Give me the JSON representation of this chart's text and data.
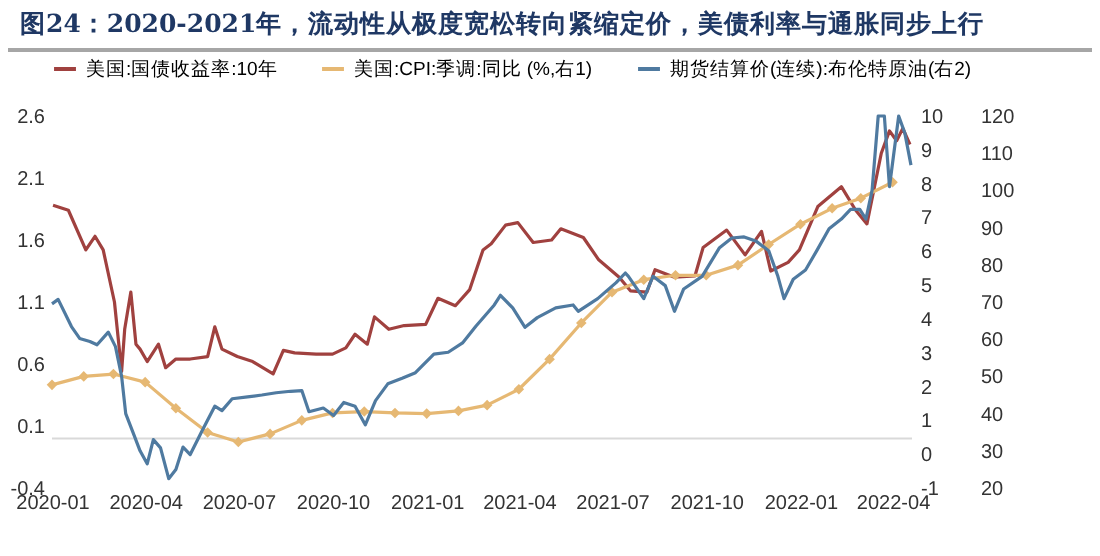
{
  "chart_data": {
    "type": "line",
    "title": "图24：2020-2021年，流动性从极度宽松转向紧缩定价，美债利率与通胀同步上行",
    "xlim": [
      "2020-01-01",
      "2022-04-20"
    ],
    "xticks": [
      "2020-01",
      "2020-04",
      "2020-07",
      "2020-10",
      "2021-01",
      "2021-04",
      "2021-07",
      "2021-10",
      "2022-01",
      "2022-04"
    ],
    "ylim": [
      -0.4,
      2.6
    ],
    "yticks": [
      -0.4,
      0.1,
      0.6,
      1.1,
      1.6,
      2.1,
      2.6
    ],
    "y2lim": [
      -1,
      10
    ],
    "y2ticks": [
      -1,
      0,
      1,
      2,
      3,
      4,
      5,
      6,
      7,
      8,
      9,
      10
    ],
    "y3lim": [
      20,
      120
    ],
    "y3ticks": [
      20,
      30,
      40,
      50,
      60,
      70,
      80,
      90,
      100,
      110,
      120
    ],
    "grid": false,
    "legend": "top",
    "ref_lines": [
      {
        "axis": "y",
        "value": 0,
        "color": "#d9d9d9"
      }
    ],
    "series": [
      {
        "name": "美国:国债收益率:10年",
        "color": "#a0413f",
        "marker": "none",
        "x": [
          "2020-01-02",
          "2020-01-17",
          "2020-02-03",
          "2020-02-12",
          "2020-02-20",
          "2020-03-02",
          "2020-03-09",
          "2020-03-12",
          "2020-03-18",
          "2020-03-23",
          "2020-03-27",
          "2020-04-03",
          "2020-04-14",
          "2020-04-21",
          "2020-05-01",
          "2020-05-15",
          "2020-06-01",
          "2020-06-08",
          "2020-06-15",
          "2020-06-30",
          "2020-07-15",
          "2020-08-04",
          "2020-08-14",
          "2020-08-25",
          "2020-09-15",
          "2020-10-01",
          "2020-10-14",
          "2020-10-23",
          "2020-11-04",
          "2020-11-11",
          "2020-11-25",
          "2020-12-10",
          "2020-12-31",
          "2021-01-12",
          "2021-01-29",
          "2021-02-12",
          "2021-02-25",
          "2021-03-05",
          "2021-03-19",
          "2021-03-31",
          "2021-04-15",
          "2021-05-03",
          "2021-05-12",
          "2021-06-03",
          "2021-06-18",
          "2021-07-08",
          "2021-07-19",
          "2021-08-04",
          "2021-08-12",
          "2021-08-31",
          "2021-09-20",
          "2021-09-28",
          "2021-10-21",
          "2021-11-08",
          "2021-11-24",
          "2021-12-03",
          "2021-12-20",
          "2021-12-31",
          "2022-01-18",
          "2022-02-10",
          "2022-02-24",
          "2022-03-07",
          "2022-03-21",
          "2022-03-29",
          "2022-04-05",
          "2022-04-11",
          "2022-04-18"
        ],
        "values": [
          1.88,
          1.84,
          1.52,
          1.63,
          1.52,
          1.1,
          0.54,
          0.88,
          1.18,
          0.76,
          0.72,
          0.62,
          0.76,
          0.57,
          0.64,
          0.64,
          0.66,
          0.9,
          0.72,
          0.66,
          0.62,
          0.52,
          0.71,
          0.69,
          0.68,
          0.68,
          0.73,
          0.84,
          0.76,
          0.98,
          0.88,
          0.91,
          0.92,
          1.13,
          1.07,
          1.2,
          1.52,
          1.57,
          1.72,
          1.74,
          1.58,
          1.6,
          1.69,
          1.62,
          1.44,
          1.3,
          1.19,
          1.18,
          1.36,
          1.3,
          1.31,
          1.54,
          1.68,
          1.48,
          1.67,
          1.35,
          1.42,
          1.52,
          1.87,
          2.03,
          1.84,
          1.73,
          2.3,
          2.48,
          2.4,
          2.5,
          2.37
        ]
      },
      {
        "name": "美国:CPI:季调:同比 (%,右1)",
        "color": "#e6b873",
        "axis": "y2",
        "marker": "diamond",
        "x": [
          "2020-01-01",
          "2020-02-01",
          "2020-03-01",
          "2020-04-01",
          "2020-05-01",
          "2020-06-01",
          "2020-07-01",
          "2020-08-01",
          "2020-09-01",
          "2020-10-01",
          "2020-11-01",
          "2020-12-01",
          "2021-01-01",
          "2021-02-01",
          "2021-03-01",
          "2021-04-01",
          "2021-05-01",
          "2021-06-01",
          "2021-07-01",
          "2021-08-01",
          "2021-09-01",
          "2021-10-01",
          "2021-11-01",
          "2021-12-01",
          "2022-01-01",
          "2022-02-01",
          "2022-03-01",
          "2022-04-01"
        ],
        "values": [
          2.05,
          2.3,
          2.37,
          2.13,
          1.36,
          0.64,
          0.36,
          0.6,
          1.0,
          1.22,
          1.26,
          1.22,
          1.2,
          1.28,
          1.45,
          1.92,
          2.81,
          3.88,
          4.79,
          5.16,
          5.29,
          5.29,
          5.59,
          6.2,
          6.8,
          7.27,
          7.57,
          8.04
        ]
      },
      {
        "name": "期货结算价(连续):布伦特原油(右2)",
        "color": "#4f7aa0",
        "axis": "y3",
        "marker": "none",
        "x": [
          "2020-01-01",
          "2020-01-07",
          "2020-01-20",
          "2020-01-28",
          "2020-02-07",
          "2020-02-14",
          "2020-02-25",
          "2020-03-03",
          "2020-03-09",
          "2020-03-13",
          "2020-03-20",
          "2020-03-27",
          "2020-04-03",
          "2020-04-09",
          "2020-04-16",
          "2020-04-24",
          "2020-05-01",
          "2020-05-08",
          "2020-05-15",
          "2020-05-27",
          "2020-06-08",
          "2020-06-15",
          "2020-06-25",
          "2020-07-10",
          "2020-07-24",
          "2020-08-07",
          "2020-08-21",
          "2020-09-01",
          "2020-09-08",
          "2020-09-22",
          "2020-10-02",
          "2020-10-12",
          "2020-10-23",
          "2020-11-02",
          "2020-11-12",
          "2020-11-24",
          "2020-12-08",
          "2020-12-21",
          "2021-01-08",
          "2021-01-22",
          "2021-02-05",
          "2021-02-18",
          "2021-03-08",
          "2021-03-14",
          "2021-03-26",
          "2021-04-07",
          "2021-04-19",
          "2021-05-07",
          "2021-05-24",
          "2021-05-29",
          "2021-06-17",
          "2021-07-05",
          "2021-07-14",
          "2021-07-17",
          "2021-08-01",
          "2021-08-10",
          "2021-08-22",
          "2021-08-31",
          "2021-09-09",
          "2021-09-27",
          "2021-10-14",
          "2021-10-26",
          "2021-11-07",
          "2021-11-19",
          "2021-12-01",
          "2021-12-10",
          "2021-12-16",
          "2021-12-25",
          "2022-01-06",
          "2022-01-17",
          "2022-01-29",
          "2022-02-10",
          "2022-02-19",
          "2022-02-28",
          "2022-03-06",
          "2022-03-12",
          "2022-03-18",
          "2022-03-24",
          "2022-03-29",
          "2022-04-07",
          "2022-04-13",
          "2022-04-19"
        ],
        "values": [
          69.5,
          70.7,
          63.4,
          60.2,
          59.4,
          58.5,
          61.9,
          58,
          50,
          40,
          35,
          30,
          26.5,
          33,
          30.8,
          22.5,
          25,
          31,
          29,
          35.6,
          42,
          40.8,
          44,
          44.5,
          45,
          45.6,
          46,
          46.2,
          40.5,
          41.5,
          39.5,
          43,
          42,
          37,
          43.5,
          48,
          49.5,
          51,
          56,
          56.5,
          59,
          63.5,
          69.2,
          71.8,
          68.4,
          63.2,
          65.8,
          68.4,
          69.2,
          67.5,
          70.9,
          75.2,
          77.8,
          76.9,
          70.9,
          76.9,
          74.4,
          67.5,
          73.5,
          76.9,
          84.6,
          87.2,
          87.5,
          86.3,
          83.8,
          76.9,
          70.9,
          76.1,
          78.6,
          83.8,
          89.7,
          92.3,
          94.9,
          94.9,
          92.3,
          100,
          120,
          120,
          101,
          120,
          115.4,
          106.8
        ]
      }
    ]
  }
}
